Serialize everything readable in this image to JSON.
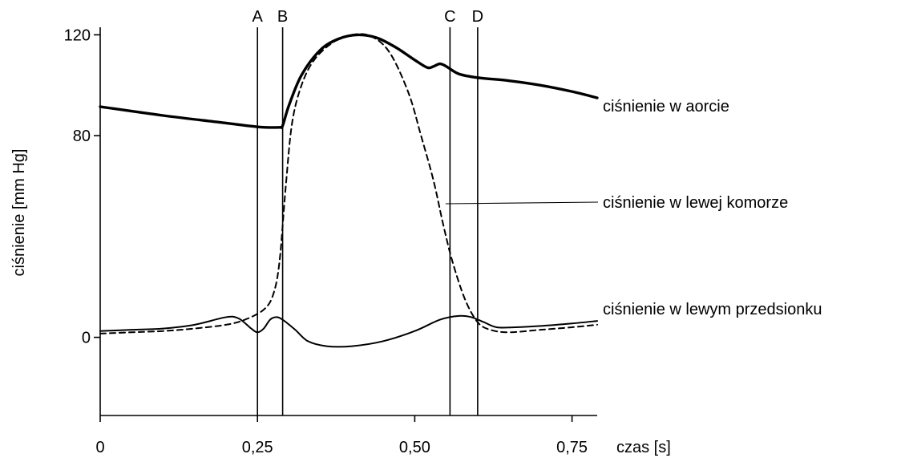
{
  "chart_data": {
    "type": "line",
    "xlabel": "czas [s]",
    "ylabel": "ciśnienie [mm Hg]",
    "xlim": [
      0,
      0.79
    ],
    "ylim": [
      -31,
      123
    ],
    "x_ticks": [
      {
        "value": 0,
        "label": "0"
      },
      {
        "value": 0.25,
        "label": "0,25"
      },
      {
        "value": 0.5,
        "label": "0,50"
      },
      {
        "value": 0.75,
        "label": "0,75"
      }
    ],
    "y_ticks": [
      {
        "value": 0,
        "label": "0"
      },
      {
        "value": 80,
        "label": "80"
      },
      {
        "value": 120,
        "label": "120"
      }
    ],
    "markers": [
      {
        "label": "A",
        "x": 0.25
      },
      {
        "label": "B",
        "x": 0.29
      },
      {
        "label": "C",
        "x": 0.556
      },
      {
        "label": "D",
        "x": 0.6
      }
    ],
    "series": [
      {
        "name": "ciśnienie w aorcie",
        "style": "solid-thick",
        "color": "#000000",
        "points": [
          [
            0,
            91.5
          ],
          [
            0.1,
            88
          ],
          [
            0.2,
            85
          ],
          [
            0.25,
            83.5
          ],
          [
            0.285,
            83.3
          ],
          [
            0.29,
            84
          ],
          [
            0.3,
            92
          ],
          [
            0.32,
            104
          ],
          [
            0.35,
            114
          ],
          [
            0.38,
            118.5
          ],
          [
            0.41,
            120
          ],
          [
            0.44,
            118.8
          ],
          [
            0.47,
            115
          ],
          [
            0.5,
            110
          ],
          [
            0.52,
            107
          ],
          [
            0.53,
            107.5
          ],
          [
            0.54,
            108.5
          ],
          [
            0.55,
            107.5
          ],
          [
            0.57,
            104.5
          ],
          [
            0.6,
            103
          ],
          [
            0.65,
            101.8
          ],
          [
            0.7,
            100
          ],
          [
            0.75,
            97.5
          ],
          [
            0.79,
            95
          ]
        ]
      },
      {
        "name": "ciśnienie w lewej komorze",
        "style": "dashed",
        "color": "#000000",
        "points": [
          [
            0,
            1.5
          ],
          [
            0.05,
            2
          ],
          [
            0.1,
            2.5
          ],
          [
            0.15,
            3.5
          ],
          [
            0.2,
            5
          ],
          [
            0.23,
            7
          ],
          [
            0.26,
            11
          ],
          [
            0.275,
            17
          ],
          [
            0.285,
            30
          ],
          [
            0.295,
            60
          ],
          [
            0.305,
            85
          ],
          [
            0.32,
            100
          ],
          [
            0.34,
            110
          ],
          [
            0.37,
            117
          ],
          [
            0.4,
            120
          ],
          [
            0.43,
            119.5
          ],
          [
            0.46,
            113
          ],
          [
            0.49,
            97
          ],
          [
            0.51,
            80
          ],
          [
            0.53,
            62
          ],
          [
            0.545,
            45
          ],
          [
            0.56,
            30
          ],
          [
            0.58,
            15
          ],
          [
            0.6,
            6
          ],
          [
            0.62,
            3
          ],
          [
            0.65,
            2
          ],
          [
            0.7,
            3
          ],
          [
            0.75,
            4
          ],
          [
            0.79,
            5
          ]
        ]
      },
      {
        "name": "ciśnienie w lewym przedsionku",
        "style": "solid",
        "color": "#000000",
        "points": [
          [
            0,
            2.5
          ],
          [
            0.05,
            3
          ],
          [
            0.1,
            3.5
          ],
          [
            0.15,
            5
          ],
          [
            0.2,
            8
          ],
          [
            0.22,
            7.5
          ],
          [
            0.24,
            3.5
          ],
          [
            0.25,
            2
          ],
          [
            0.26,
            3.5
          ],
          [
            0.27,
            7
          ],
          [
            0.28,
            8
          ],
          [
            0.29,
            7
          ],
          [
            0.31,
            3
          ],
          [
            0.33,
            -1.5
          ],
          [
            0.36,
            -3.5
          ],
          [
            0.4,
            -3.5
          ],
          [
            0.45,
            -1.5
          ],
          [
            0.5,
            2.5
          ],
          [
            0.54,
            7
          ],
          [
            0.57,
            8.5
          ],
          [
            0.59,
            8
          ],
          [
            0.61,
            6
          ],
          [
            0.63,
            4
          ],
          [
            0.66,
            4
          ],
          [
            0.7,
            4.5
          ],
          [
            0.75,
            5.5
          ],
          [
            0.79,
            6.5
          ]
        ]
      }
    ]
  }
}
